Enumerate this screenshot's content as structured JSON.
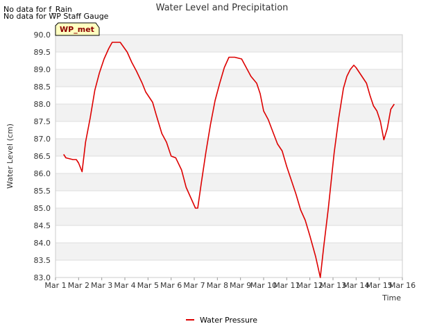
{
  "notices": [
    "No data for f_Rain",
    "No data for WP Staff Gauge"
  ],
  "site_badge": "WP_met",
  "legend": {
    "label": "Water Pressure",
    "color": "#dd0000"
  },
  "chart_data": {
    "type": "line",
    "title": "Water Level and Precipitation",
    "xlabel": "Time",
    "ylabel": "Water Level (cm)",
    "ylim": [
      83.0,
      90.0
    ],
    "y_ticks": [
      "83.0",
      "83.5",
      "84.0",
      "84.5",
      "85.0",
      "85.5",
      "86.0",
      "86.5",
      "87.0",
      "87.5",
      "88.0",
      "88.5",
      "89.0",
      "89.5",
      "90.0"
    ],
    "x_ticks": [
      "Mar 1",
      "Mar 2",
      "Mar 3",
      "Mar 4",
      "Mar 5",
      "Mar 6",
      "Mar 7",
      "Mar 8",
      "Mar 9",
      "Mar 10",
      "Mar 11",
      "Mar 12",
      "Mar 13",
      "Mar 14",
      "Mar 15",
      "Mar 16"
    ],
    "x_unit": "days since Mar 1",
    "xlim": [
      0,
      15
    ],
    "grid": true,
    "legend_position": "bottom-center",
    "series": [
      {
        "name": "Water Pressure",
        "color": "#dd0000",
        "x": [
          0.35,
          0.45,
          0.75,
          0.9,
          1.0,
          1.15,
          1.3,
          1.5,
          1.7,
          1.9,
          2.1,
          2.3,
          2.45,
          2.65,
          2.8,
          3.1,
          3.3,
          3.5,
          3.75,
          3.9,
          4.05,
          4.2,
          4.35,
          4.6,
          4.8,
          5.0,
          5.2,
          5.45,
          5.65,
          5.85,
          6.05,
          6.15,
          6.3,
          6.5,
          6.7,
          6.9,
          7.1,
          7.3,
          7.5,
          7.75,
          8.05,
          8.25,
          8.45,
          8.7,
          8.85,
          9.0,
          9.2,
          9.4,
          9.6,
          9.8,
          10.0,
          10.2,
          10.4,
          10.6,
          10.8,
          11.0,
          11.25,
          11.45,
          11.6,
          11.8,
          12.05,
          12.25,
          12.45,
          12.6,
          12.75,
          12.9,
          13.0,
          13.15,
          13.3,
          13.45,
          13.6,
          13.75,
          13.9,
          14.05,
          14.2,
          14.35,
          14.5,
          14.65
        ],
        "y": [
          86.55,
          86.45,
          86.4,
          86.4,
          86.3,
          86.05,
          86.9,
          87.6,
          88.4,
          88.9,
          89.3,
          89.6,
          89.78,
          89.78,
          89.78,
          89.5,
          89.2,
          88.95,
          88.6,
          88.35,
          88.2,
          88.05,
          87.7,
          87.15,
          86.9,
          86.5,
          86.45,
          86.1,
          85.6,
          85.3,
          85.0,
          85.0,
          85.7,
          86.6,
          87.4,
          88.1,
          88.6,
          89.05,
          89.35,
          89.35,
          89.3,
          89.05,
          88.8,
          88.6,
          88.3,
          87.8,
          87.55,
          87.2,
          86.85,
          86.65,
          86.2,
          85.8,
          85.4,
          84.95,
          84.65,
          84.2,
          83.6,
          83.0,
          83.9,
          85.0,
          86.6,
          87.6,
          88.45,
          88.8,
          89.0,
          89.12,
          89.05,
          88.9,
          88.75,
          88.6,
          88.25,
          87.95,
          87.8,
          87.5,
          86.97,
          87.3,
          87.85,
          88.0
        ]
      }
    ]
  }
}
